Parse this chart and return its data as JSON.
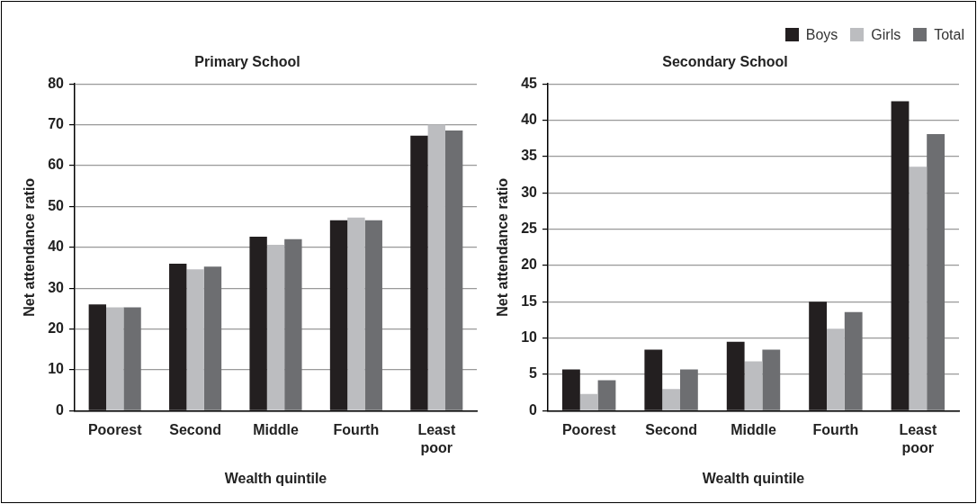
{
  "chart_data": [
    {
      "type": "bar",
      "title": "Primary School",
      "xlabel": "Wealth quintile",
      "ylabel": "Net attendance ratio",
      "categories": [
        "Poorest",
        "Second",
        "Middle",
        "Fourth",
        "Least poor"
      ],
      "series": [
        {
          "name": "Boys",
          "color": "#231f20",
          "values": [
            26,
            36,
            42.6,
            46.6,
            67.3
          ]
        },
        {
          "name": "Girls",
          "color": "#bcbdc0",
          "values": [
            25.3,
            34.6,
            40.6,
            47.3,
            70
          ]
        },
        {
          "name": "Total",
          "color": "#6d6e71",
          "values": [
            25.3,
            35.3,
            42,
            46.6,
            68.6
          ]
        }
      ],
      "ylim": [
        0,
        80
      ],
      "yticks": [
        0,
        10,
        20,
        30,
        40,
        50,
        60,
        70,
        80
      ],
      "grid": "y",
      "legend": "top right"
    },
    {
      "type": "bar",
      "title": "Secondary School",
      "xlabel": "Wealth quintile",
      "ylabel": "Net attendance ratio",
      "categories": [
        "Poorest",
        "Second",
        "Middle",
        "Fourth",
        "Least poor"
      ],
      "series": [
        {
          "color": "#231f20",
          "values": [
            5.7,
            8.4,
            9.5,
            15,
            42.6
          ]
        },
        {
          "color": "#bcbdc0",
          "values": [
            2.3,
            3,
            6.8,
            11.3,
            33.6
          ]
        },
        {
          "color": "#6d6e71",
          "values": [
            4.2,
            5.7,
            8.4,
            13.6,
            38.1
          ]
        }
      ],
      "ylim": [
        0,
        45
      ],
      "yticks": [
        0,
        5,
        10,
        15,
        20,
        25,
        30,
        35,
        40,
        45
      ],
      "grid": "y"
    }
  ]
}
